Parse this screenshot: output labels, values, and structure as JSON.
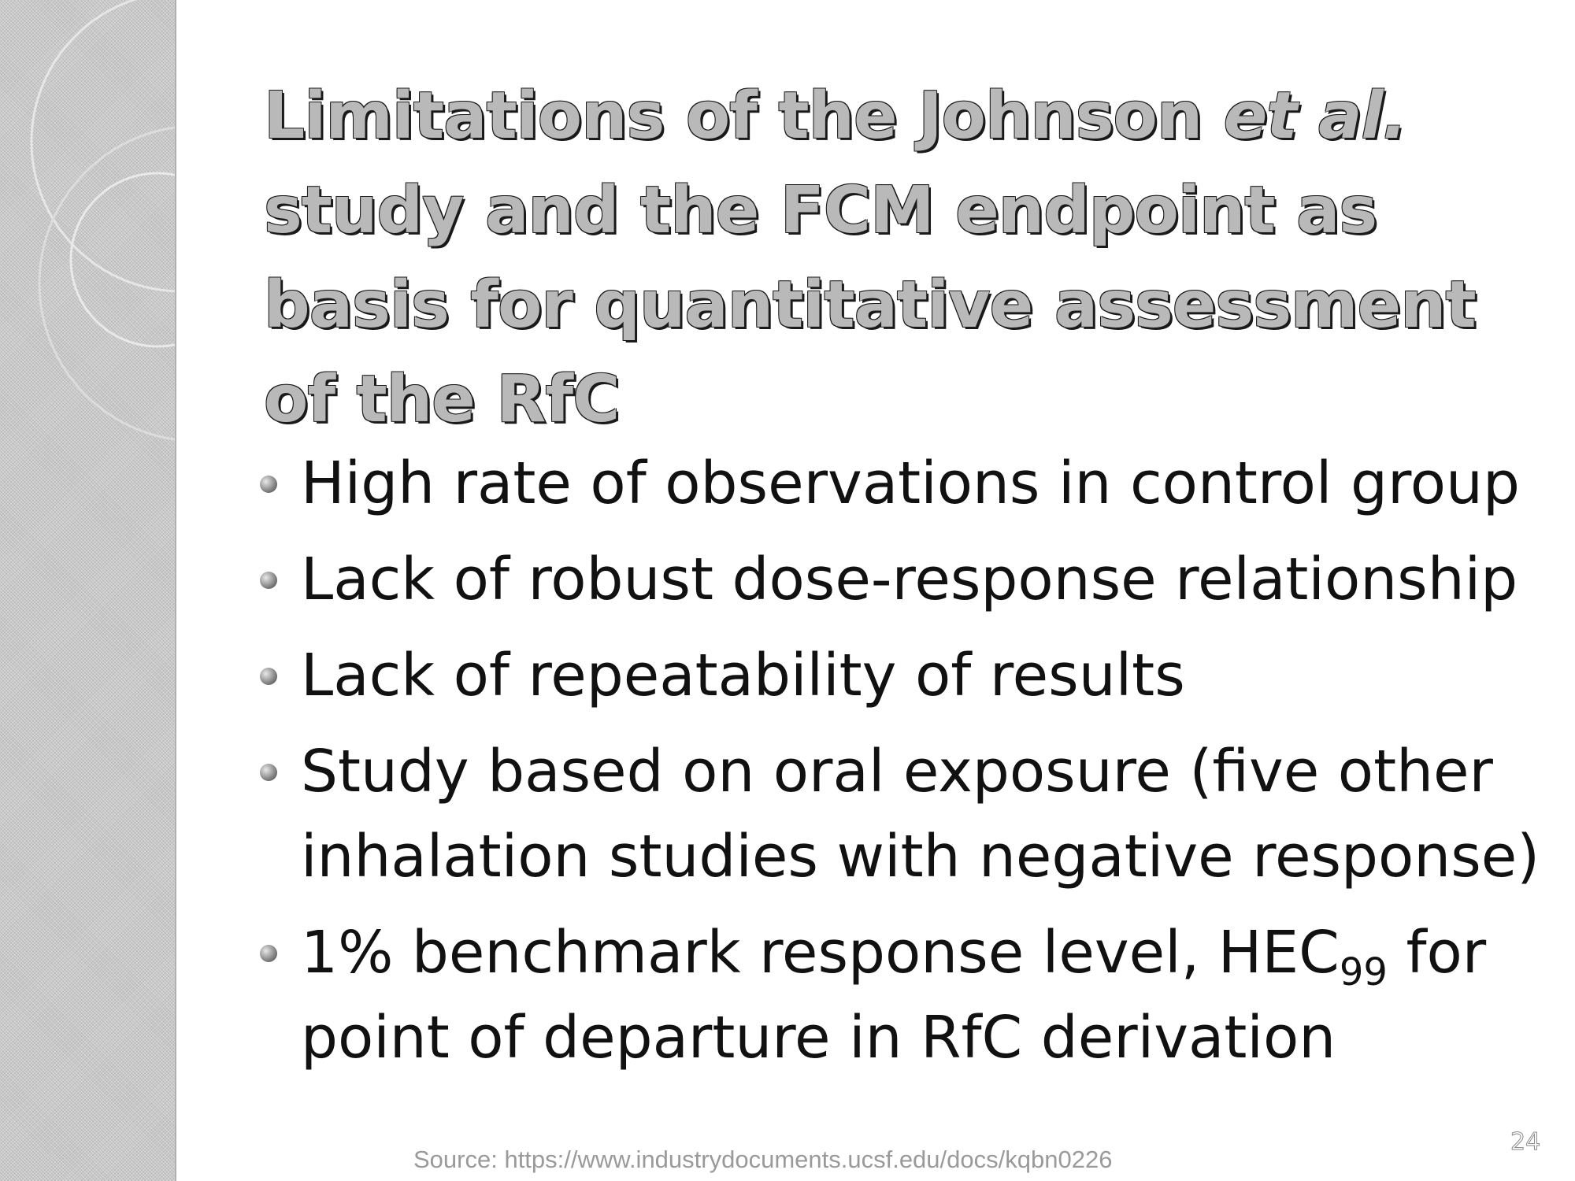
{
  "slide": {
    "title_part1": "Limitations of the Johnson ",
    "title_italic": "et al.",
    "title_part2": " study and the FCM endpoint as basis for quantitative assessment of the RfC",
    "bullets": [
      {
        "text": "High rate of observations in control group"
      },
      {
        "text": "Lack of robust dose-response relationship"
      },
      {
        "text": "Lack of repeatability of results"
      },
      {
        "text": "Study based on oral exposure (five other inhalation studies with negative response)"
      },
      {
        "text_before": "1% benchmark response level, HEC",
        "subscript": "99",
        "text_after": " for point of departure in RfC derivation"
      }
    ],
    "page_number": "24",
    "source": "Source: https://www.industrydocuments.ucsf.edu/docs/kqbn0226"
  }
}
